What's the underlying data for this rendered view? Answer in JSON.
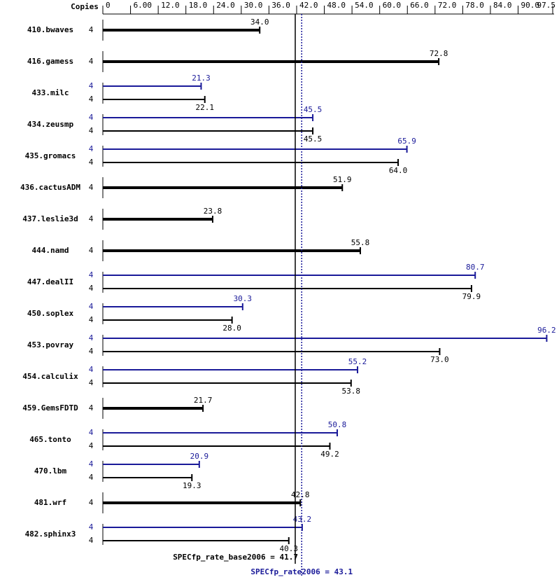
{
  "chart_data": {
    "type": "bar",
    "copies_label": "Copies",
    "categories": [
      "410.bwaves",
      "416.gamess",
      "433.milc",
      "434.zeusmp",
      "435.gromacs",
      "436.cactusADM",
      "437.leslie3d",
      "444.namd",
      "447.dealII",
      "450.soplex",
      "453.povray",
      "454.calculix",
      "459.GemsFDTD",
      "465.tonto",
      "470.lbm",
      "481.wrf",
      "482.sphinx3"
    ],
    "series": [
      {
        "color": "#000000",
        "copies": [
          4,
          4,
          4,
          4,
          4,
          4,
          4,
          4,
          4,
          4,
          4,
          4,
          4,
          4,
          4,
          4,
          4
        ],
        "values": [
          34.0,
          72.8,
          22.1,
          45.5,
          64.0,
          51.9,
          23.8,
          55.8,
          79.9,
          28.0,
          73.0,
          53.8,
          21.7,
          49.2,
          19.3,
          42.8,
          40.3
        ],
        "value_labels": [
          "34.0",
          "72.8",
          "22.1",
          "45.5",
          "64.0",
          "51.9",
          "23.8",
          "55.8",
          "79.9",
          "28.0",
          "73.0",
          "53.8",
          "21.7",
          "49.2",
          "19.3",
          "42.8",
          "40.3"
        ]
      },
      {
        "color": "#1a1a99",
        "copies": [
          null,
          null,
          4,
          4,
          4,
          null,
          null,
          null,
          4,
          4,
          4,
          4,
          null,
          4,
          4,
          null,
          4
        ],
        "values": [
          null,
          null,
          21.3,
          45.5,
          65.9,
          null,
          null,
          null,
          80.7,
          30.3,
          96.2,
          55.2,
          null,
          50.8,
          20.9,
          null,
          43.2
        ],
        "value_labels": [
          null,
          null,
          "21.3",
          "45.5",
          "65.9",
          null,
          null,
          null,
          "80.7",
          "30.3",
          "96.2",
          "55.2",
          null,
          "50.8",
          "20.9",
          null,
          "43.2"
        ]
      }
    ],
    "xlim": [
      0,
      97.5
    ],
    "xticks": [
      0,
      {
        "value": 6,
        "label": "6.00"
      },
      {
        "value": 12,
        "label": "12.0"
      },
      {
        "value": 18,
        "label": "18.0"
      },
      {
        "value": 24,
        "label": "24.0"
      },
      {
        "value": 30,
        "label": "30.0"
      },
      {
        "value": 36,
        "label": "36.0"
      },
      {
        "value": 42,
        "label": "42.0"
      },
      {
        "value": 48,
        "label": "48.0"
      },
      {
        "value": 54,
        "label": "54.0"
      },
      {
        "value": 60,
        "label": "60.0"
      },
      {
        "value": 66,
        "label": "66.0"
      },
      {
        "value": 72,
        "label": "72.0"
      },
      {
        "value": 78,
        "label": "78.0"
      },
      {
        "value": 84,
        "label": "84.0"
      },
      {
        "value": 90,
        "label": "90.0"
      },
      {
        "value": 97.5,
        "label": "97.5"
      }
    ],
    "base_ref": {
      "value": 41.7,
      "label": "SPECfp_rate_base2006 = 41.7"
    },
    "peak_ref": {
      "value": 43.1,
      "label": "SPECfp_rate2006 = 43.1"
    }
  }
}
